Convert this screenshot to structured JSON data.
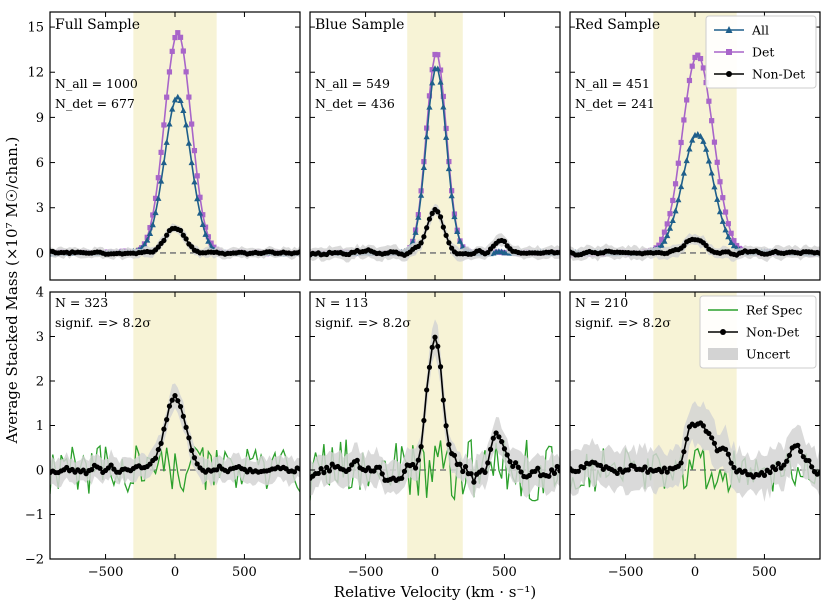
{
  "figure": {
    "ylabel": "Average Stacked Mass (×10⁷ M☉/chan.)",
    "xlabel": "Relative Velocity (km · s⁻¹)"
  },
  "colors": {
    "all": "#1f5f8b",
    "det": "#a865c9",
    "nondet": "#000000",
    "ref": "#2ca02c",
    "uncert": "#d3d3d3",
    "band": "#f7f3d6",
    "baseline": "#7f7f7f"
  },
  "chart_data": [
    {
      "type": "line",
      "title": "Full Sample",
      "row": 0,
      "col": 0,
      "xlim": [
        -900,
        900
      ],
      "ylim": [
        -1.8,
        16
      ],
      "yticks": [
        0,
        3,
        6,
        9,
        12,
        15
      ],
      "xticks": [
        -500,
        0,
        500
      ],
      "band": [
        -300,
        300
      ],
      "annotations": [
        "N_all = 1000",
        "N_det = 677"
      ],
      "series": [
        {
          "name": "Det",
          "marker": "square",
          "amp": 14.8,
          "center": 20,
          "sigma": 95,
          "noise": 0.12
        },
        {
          "name": "All",
          "marker": "triangle",
          "amp": 10.5,
          "center": 20,
          "sigma": 95,
          "noise": 0.1
        },
        {
          "name": "Non-Det",
          "marker": "circle",
          "amp": 1.7,
          "center": 0,
          "sigma": 70,
          "noise": 0.18,
          "uncert": 0.35
        }
      ]
    },
    {
      "type": "line",
      "title": "Blue Sample",
      "row": 0,
      "col": 1,
      "xlim": [
        -900,
        900
      ],
      "ylim": [
        -1.8,
        16
      ],
      "yticks": [
        0,
        3,
        6,
        9,
        12,
        15
      ],
      "xticks": [
        -500,
        0,
        500
      ],
      "band": [
        -200,
        200
      ],
      "annotations": [
        "N_all = 549",
        "N_det = 436"
      ],
      "series": [
        {
          "name": "Det",
          "marker": "square",
          "amp": 13.6,
          "center": 10,
          "sigma": 70,
          "noise": 0.12
        },
        {
          "name": "All",
          "marker": "triangle",
          "amp": 12.7,
          "center": 10,
          "sigma": 70,
          "noise": 0.1
        },
        {
          "name": "Non-Det",
          "marker": "circle",
          "amp": 3.0,
          "center": 0,
          "sigma": 55,
          "noise": 0.25,
          "uncert": 0.45,
          "extra": [
            {
              "center": 470,
              "amp": 0.8,
              "sigma": 50
            }
          ]
        }
      ]
    },
    {
      "type": "line",
      "title": "Red Sample",
      "row": 0,
      "col": 2,
      "xlim": [
        -900,
        900
      ],
      "ylim": [
        -1.8,
        16
      ],
      "yticks": [
        0,
        3,
        6,
        9,
        12,
        15
      ],
      "xticks": [
        -500,
        0,
        500
      ],
      "band": [
        -300,
        300
      ],
      "annotations": [
        "N_all = 451",
        "N_det = 241"
      ],
      "legend": [
        "All",
        "Det",
        "Non-Det"
      ],
      "series": [
        {
          "name": "Det",
          "marker": "square",
          "amp": 13.3,
          "center": 20,
          "sigma": 110,
          "noise": 0.15
        },
        {
          "name": "All",
          "marker": "triangle",
          "amp": 8.0,
          "center": 20,
          "sigma": 110,
          "noise": 0.12
        },
        {
          "name": "Non-Det",
          "marker": "circle",
          "amp": 1.0,
          "center": 0,
          "sigma": 60,
          "noise": 0.2,
          "uncert": 0.45
        }
      ]
    },
    {
      "type": "line",
      "title": "",
      "row": 1,
      "col": 0,
      "xlim": [
        -900,
        900
      ],
      "ylim": [
        -2,
        4
      ],
      "yticks": [
        -2,
        -1,
        0,
        1,
        2,
        3,
        4
      ],
      "xticks": [
        -500,
        0,
        500
      ],
      "band": [
        -300,
        300
      ],
      "annotations": [
        "N = 323",
        "signif. => 8.2σ"
      ],
      "series": [
        {
          "name": "Ref Spec",
          "marker": "none",
          "amp": 0,
          "center": 0,
          "sigma": 50,
          "noise": 0.55
        },
        {
          "name": "Non-Det",
          "marker": "circle",
          "amp": 1.75,
          "center": 0,
          "sigma": 70,
          "noise": 0.15,
          "uncert": 0.3
        }
      ]
    },
    {
      "type": "line",
      "title": "",
      "row": 1,
      "col": 1,
      "xlim": [
        -900,
        900
      ],
      "ylim": [
        -2,
        4
      ],
      "yticks": [
        -2,
        -1,
        0,
        1,
        2,
        3,
        4
      ],
      "xticks": [
        -500,
        0,
        500
      ],
      "band": [
        -200,
        200
      ],
      "annotations": [
        "N = 113",
        "signif. => 8.2σ"
      ],
      "series": [
        {
          "name": "Ref Spec",
          "marker": "none",
          "amp": 0,
          "center": 0,
          "sigma": 50,
          "noise": 0.7
        },
        {
          "name": "Non-Det",
          "marker": "circle",
          "amp": 3.1,
          "center": 0,
          "sigma": 55,
          "noise": 0.3,
          "uncert": 0.4,
          "extra": [
            {
              "center": 470,
              "amp": 0.8,
              "sigma": 50
            }
          ]
        }
      ]
    },
    {
      "type": "line",
      "title": "",
      "row": 1,
      "col": 2,
      "xlim": [
        -900,
        900
      ],
      "ylim": [
        -2,
        4
      ],
      "yticks": [
        -2,
        -1,
        0,
        1,
        2,
        3,
        4
      ],
      "xticks": [
        -500,
        0,
        500
      ],
      "band": [
        -300,
        300
      ],
      "annotations": [
        "N = 210",
        "signif. => 8.2σ"
      ],
      "legend": [
        "Ref Spec",
        "Non-Det",
        "Uncert"
      ],
      "series": [
        {
          "name": "Ref Spec",
          "marker": "none",
          "amp": 0,
          "center": 0,
          "sigma": 50,
          "noise": 0.5
        },
        {
          "name": "Non-Det",
          "marker": "circle",
          "amp": 1.0,
          "center": 0,
          "sigma": 60,
          "noise": 0.22,
          "uncert": 0.5,
          "extra": [
            {
              "center": 150,
              "amp": 0.6,
              "sigma": 80
            },
            {
              "center": 720,
              "amp": 0.5,
              "sigma": 50
            }
          ]
        }
      ]
    }
  ]
}
